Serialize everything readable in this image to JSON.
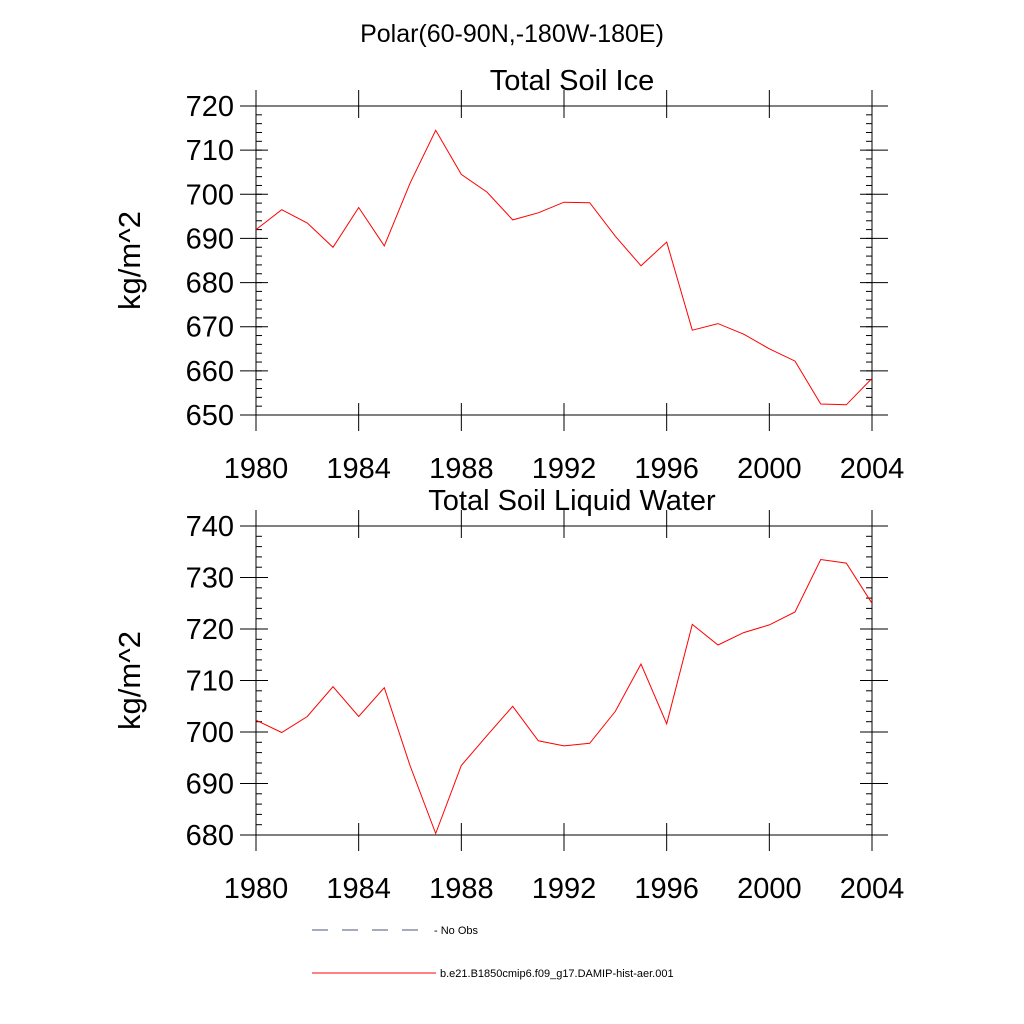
{
  "figure": {
    "suptitle": "Polar(60-90N,-180W-180E)"
  },
  "legend": {
    "placement": "bottom-center",
    "entries": [
      {
        "label": "- No Obs",
        "style": "dashed",
        "color": "#4a5a7a"
      },
      {
        "label": "b.e21.B1850cmip6.f09_g17.DAMIP-hist-aer.001",
        "style": "solid",
        "color": "#ff0000"
      }
    ]
  },
  "chart_data": [
    {
      "type": "line",
      "title": "Total Soil Ice",
      "xlabel": "",
      "ylabel": "kg/m^2",
      "xlim": [
        1980,
        2004
      ],
      "ylim": [
        650,
        720
      ],
      "xticks": [
        1980,
        1984,
        1988,
        1992,
        1996,
        2000,
        2004
      ],
      "yticks": [
        650,
        660,
        670,
        680,
        690,
        700,
        710,
        720
      ],
      "grid": false,
      "series": [
        {
          "color": "#ff0000",
          "x": [
            1980,
            1981,
            1982,
            1983,
            1984,
            1985,
            1986,
            1987,
            1988,
            1989,
            1990,
            1991,
            1992,
            1993,
            1994,
            1995,
            1996,
            1997,
            1998,
            1999,
            2000,
            2001,
            2002,
            2003,
            2004
          ],
          "y": [
            692,
            696.5,
            693.5,
            688,
            697,
            688.3,
            702.5,
            714.5,
            704.5,
            700.5,
            694.2,
            695.8,
            698.2,
            698.1,
            690.5,
            683.8,
            689.2,
            669.2,
            670.7,
            668.3,
            665,
            662.2,
            652.5,
            652.3,
            658.3
          ]
        }
      ]
    },
    {
      "type": "line",
      "title": "Total Soil Liquid Water",
      "xlabel": "",
      "ylabel": "kg/m^2",
      "xlim": [
        1980,
        2004
      ],
      "ylim": [
        680,
        740
      ],
      "xticks": [
        1980,
        1984,
        1988,
        1992,
        1996,
        2000,
        2004
      ],
      "yticks": [
        680,
        690,
        700,
        710,
        720,
        730,
        740
      ],
      "grid": false,
      "series": [
        {
          "color": "#ff0000",
          "x": [
            1980,
            1981,
            1982,
            1983,
            1984,
            1985,
            1986,
            1987,
            1988,
            1989,
            1990,
            1991,
            1992,
            1993,
            1994,
            1995,
            1996,
            1997,
            1998,
            1999,
            2000,
            2001,
            2002,
            2003,
            2004
          ],
          "y": [
            702.3,
            699.9,
            703,
            708.8,
            703,
            708.6,
            693.5,
            680.3,
            693.5,
            699.3,
            705,
            698.3,
            697.3,
            697.8,
            704,
            713.2,
            701.6,
            720.9,
            716.9,
            719.3,
            720.8,
            723.3,
            733.5,
            732.8,
            725
          ]
        }
      ]
    }
  ]
}
